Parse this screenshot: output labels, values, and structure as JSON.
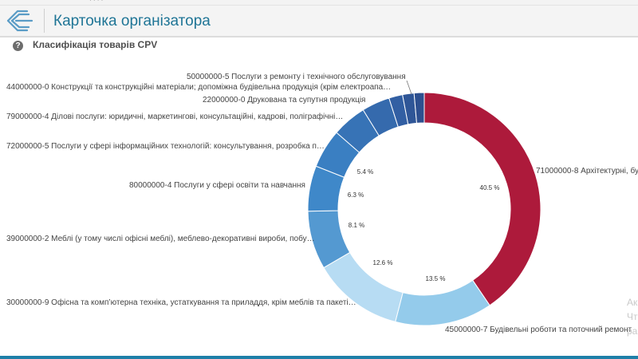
{
  "header": {
    "title": "Карточка організатора"
  },
  "help_icon": "question-mark-icon",
  "chart_data": {
    "type": "pie",
    "donut": true,
    "title": "Класифікація товарів CPV",
    "slices": [
      {
        "label": "71000000-8 Архітектурні, бу",
        "value": 40.5,
        "value_label": "40.5 %",
        "color": "#ad1a3b"
      },
      {
        "label": "45000000-7 Будівельні роботи та поточний ремонт",
        "value": 13.5,
        "value_label": "13.5 %",
        "color": "#94cbeb"
      },
      {
        "label": "30000000-9 Офісна та комп’ютерна техніка, устаткування та приладдя, крім меблів та пакеті…",
        "value": 12.6,
        "value_label": "12.6 %",
        "color": "#b7dcf3"
      },
      {
        "label": "39000000-2 Меблі (у тому числі офісні меблі), меблево-декоративні вироби, побу…",
        "value": 8.1,
        "value_label": "8.1 %",
        "color": "#5499d1"
      },
      {
        "label": "80000000-4 Послуги у сфері освіти та навчання",
        "value": 6.3,
        "value_label": "6.3 %",
        "color": "#3f88c9"
      },
      {
        "label": "72000000-5 Послуги у сфері інформаційних технологій: консультування, розробка п…",
        "value": 5.4,
        "value_label": "5.4 %",
        "color": "#3a7fc2"
      },
      {
        "label": "79000000-4 Ділові послуги: юридичні, маркетингові, консультаційні, кадрові, поліграфічні…",
        "value": 4.8,
        "value_label": "",
        "color": "#3773b6"
      },
      {
        "label": "22000000-0 Друкована та супутня продукція",
        "value": 3.9,
        "value_label": "",
        "color": "#356aad"
      },
      {
        "label": "44000000-0 Конструкції та конструкційні матеріали; допоміжна будівельна продукція (крім електроапа…",
        "value": 1.9,
        "value_label": "",
        "color": "#325fa3"
      },
      {
        "label": "50000000-5 Послуги з ремонту і технічного обслуговування",
        "value": 1.6,
        "value_label": "",
        "color": "#2f5697"
      },
      {
        "label": "",
        "value": 1.4,
        "value_label": "",
        "color": "#2d4f8f"
      }
    ]
  },
  "watermark": {
    "line1": "Ак",
    "line2": "Чт",
    "line3": "ра"
  }
}
